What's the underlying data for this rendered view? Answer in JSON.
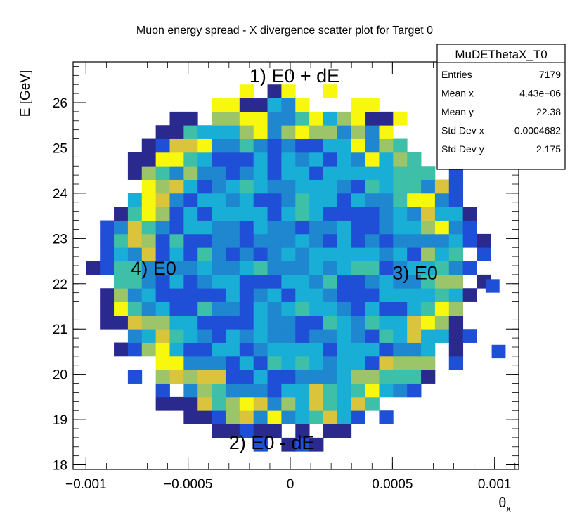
{
  "chart_data": {
    "type": "heatmap",
    "title": "Muon energy spread - X divergence scatter plot for Target 0",
    "xlabel": "θ",
    "xlabel_sub": "x",
    "ylabel": "E [GeV]",
    "xlim": [
      -0.001,
      0.001
    ],
    "ylim": [
      18,
      27
    ],
    "xticks": [
      {
        "value": -0.001,
        "label": "−0.001"
      },
      {
        "value": -0.0005,
        "label": "−0.0005"
      },
      {
        "value": 0,
        "label": "0"
      },
      {
        "value": 0.0005,
        "label": "0.0005"
      },
      {
        "value": 0.001,
        "label": "0.001"
      }
    ],
    "yticks": [
      {
        "value": 18,
        "label": "18"
      },
      {
        "value": 19,
        "label": "19"
      },
      {
        "value": 20,
        "label": "20"
      },
      {
        "value": 21,
        "label": "21"
      },
      {
        "value": 22,
        "label": "22"
      },
      {
        "value": 23,
        "label": "23"
      },
      {
        "value": 24,
        "label": "24"
      },
      {
        "value": 25,
        "label": "25"
      },
      {
        "value": 26,
        "label": "26"
      }
    ],
    "bins": {
      "nx": 30,
      "ny": 30,
      "x_min": -0.001,
      "x_max": 0.00105,
      "y_min": 18,
      "y_max": 27
    },
    "distribution": {
      "center_x": 0.0,
      "center_y": 22.4,
      "radius_x": 0.00093,
      "radius_y": 3.85
    },
    "colormap": [
      "#2a2a8e",
      "#1f4fd6",
      "#1f86d0",
      "#19aed6",
      "#3dbfa8",
      "#9cc468",
      "#d9c43c",
      "#f8f80e"
    ],
    "annotations": [
      {
        "text": "1) E0 + dE",
        "x": -0.0002,
        "y": 26.45
      },
      {
        "text": "2) E0 - dE",
        "x": -0.0003,
        "y": 18.35
      },
      {
        "text": "3) E0",
        "x": 0.0005,
        "y": 22.1
      },
      {
        "text": "4) E0",
        "x": -0.00078,
        "y": 22.2
      }
    ],
    "stats_box": {
      "name": "MuDEThetaX_T0",
      "rows": [
        {
          "label": "Entries",
          "value": "7179"
        },
        {
          "label": "Mean x",
          "value": "4.43e−06"
        },
        {
          "label": "Mean y",
          "value": "22.38"
        },
        {
          "label": "Std Dev x",
          "value": "0.0004682"
        },
        {
          "label": "Std Dev y",
          "value": "2.175"
        }
      ]
    }
  }
}
